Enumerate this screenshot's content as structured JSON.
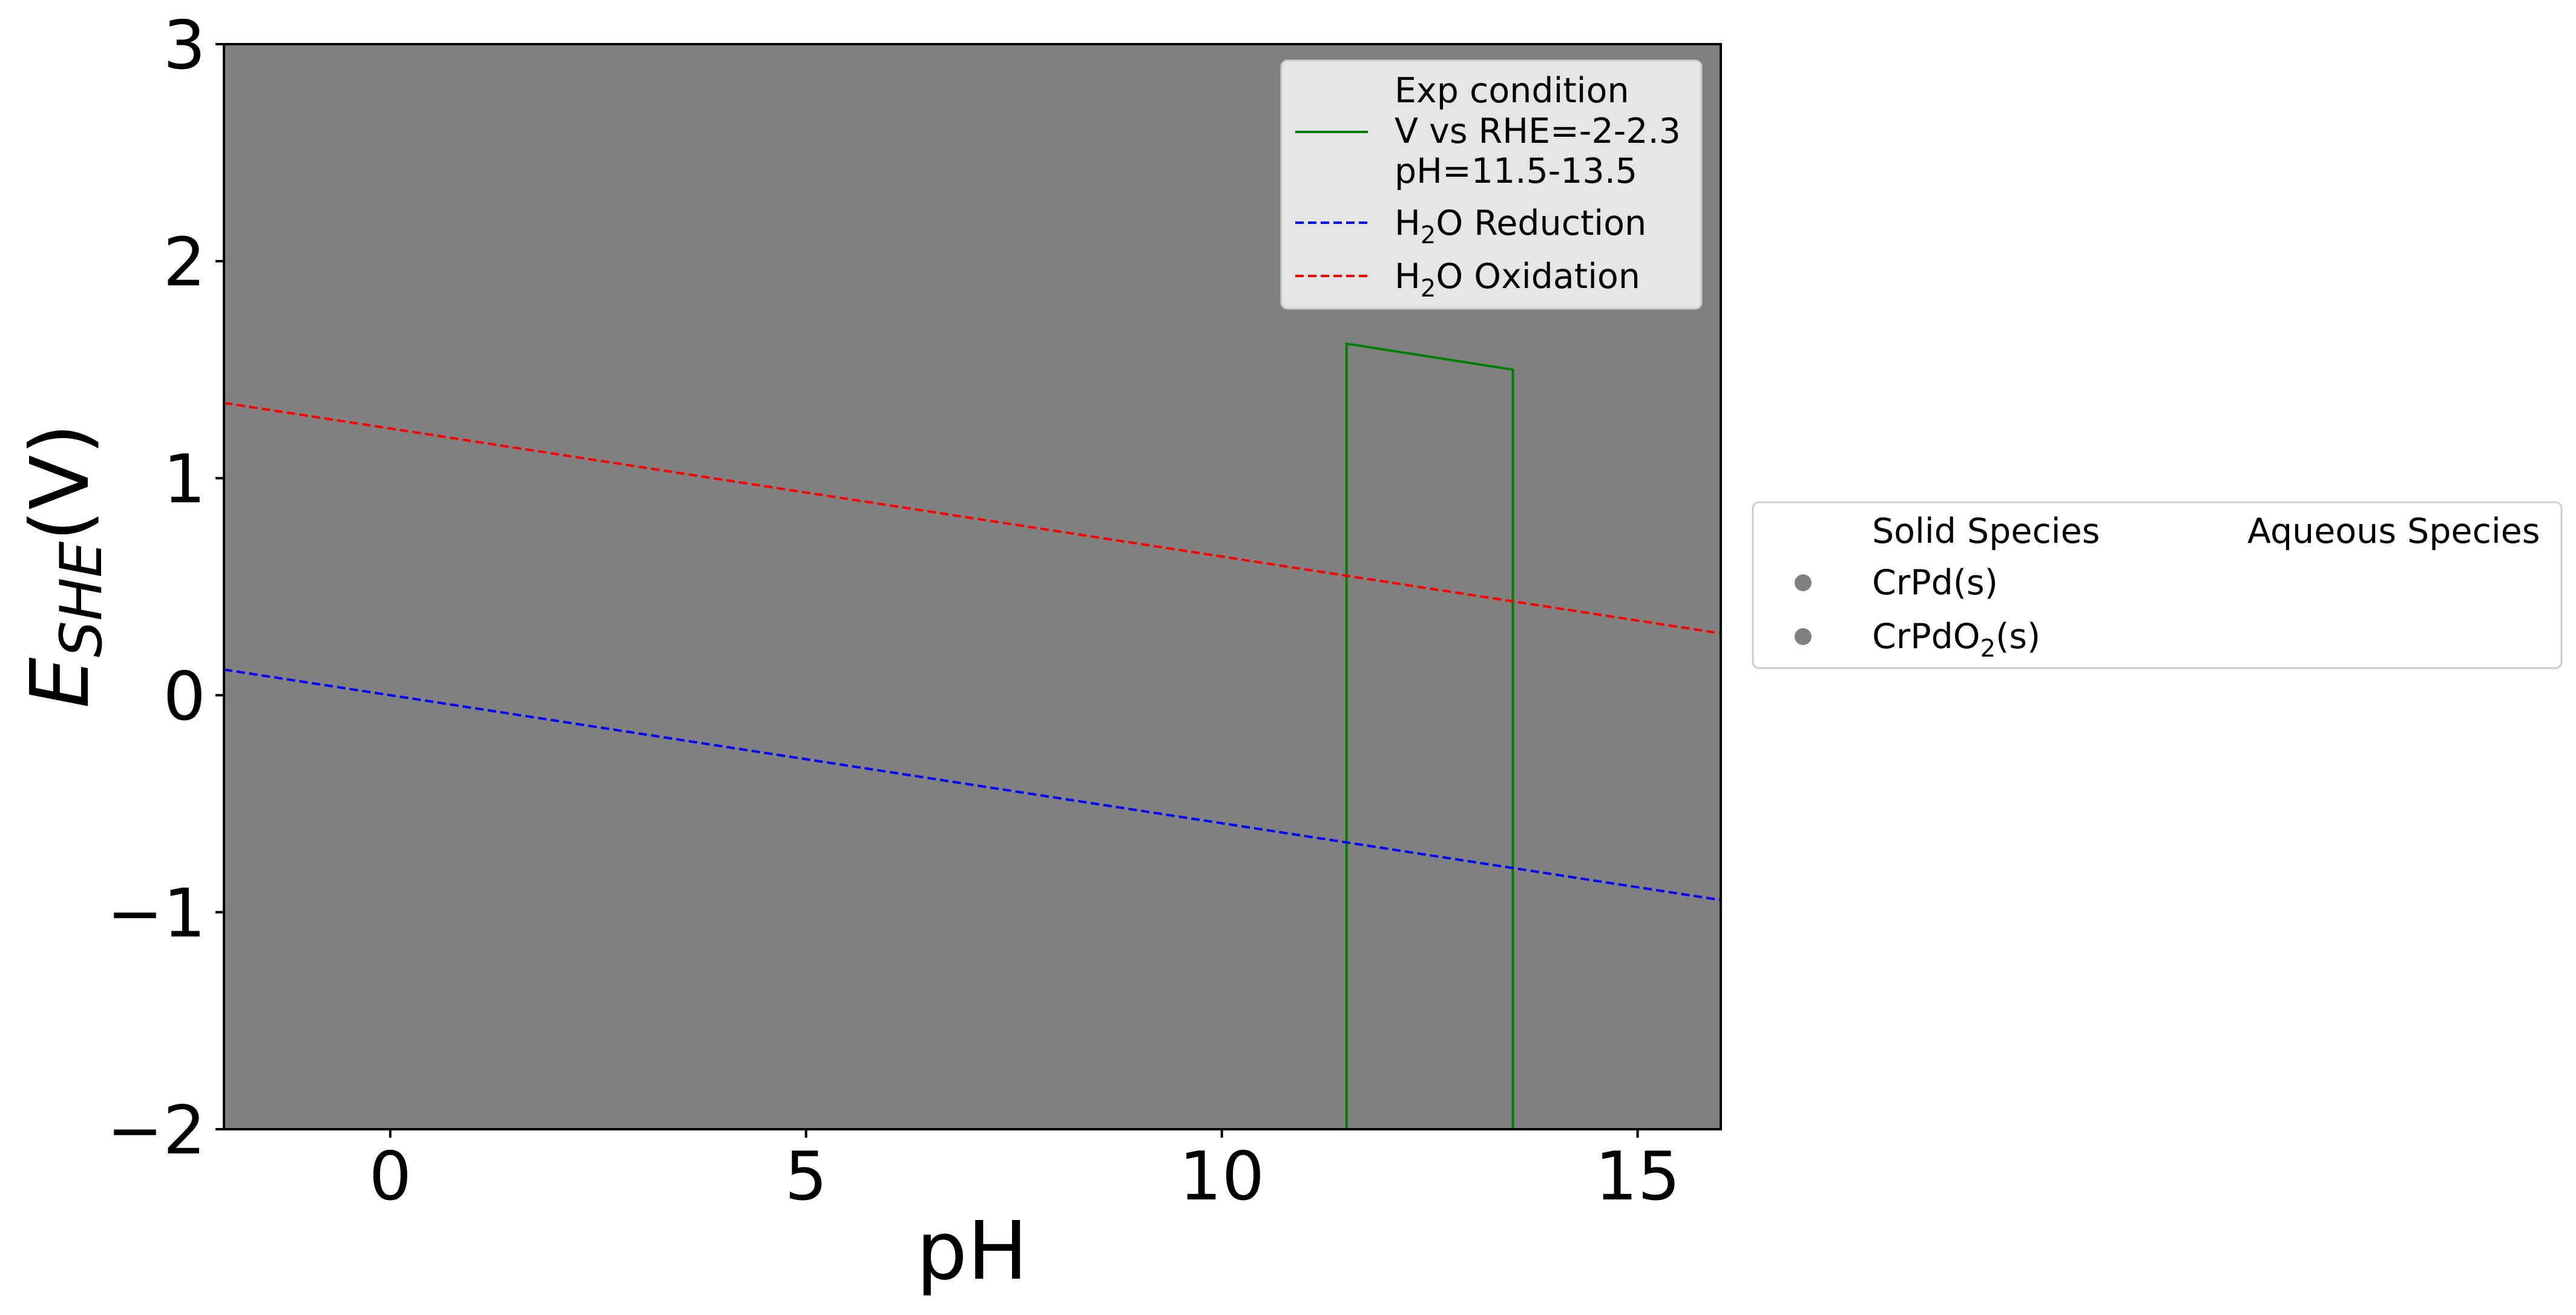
{
  "chart_data": {
    "type": "line",
    "xlabel": "pH",
    "ylabel": {
      "main": "E",
      "sub": "SHE",
      "unit": "(V)"
    },
    "xlim": [
      -2,
      16
    ],
    "ylim": [
      -2,
      3
    ],
    "xticks": [
      0,
      5,
      10,
      15
    ],
    "yticks": [
      3,
      2,
      1,
      0,
      -1,
      -2
    ],
    "xtick_labels": [
      "0",
      "5",
      "10",
      "15"
    ],
    "ytick_labels": [
      "3",
      "2",
      "1",
      "0",
      "−1",
      "−2"
    ],
    "grid": false,
    "plot_background": "#808080",
    "series": [
      {
        "key": "exp",
        "name": "Exp condition\nV vs RHE=-2-2.3\npH=11.5-13.5",
        "legend_lines": [
          "Exp condition",
          "V vs RHE=-2-2.3",
          "pH=11.5-13.5"
        ],
        "color": "#008000",
        "style": "solid",
        "x": [
          11.5,
          11.5,
          13.5,
          13.5
        ],
        "y": [
          -2.0,
          1.62,
          1.5,
          -2.0
        ]
      },
      {
        "key": "h2o_red",
        "name": "H2O Reduction",
        "legend_parts": [
          "H",
          "2",
          "O Reduction"
        ],
        "color": "#0000ff",
        "style": "dashed",
        "x": [
          -2,
          16
        ],
        "y": [
          0.118,
          -0.944
        ]
      },
      {
        "key": "h2o_ox",
        "name": "H2O Oxidation",
        "legend_parts": [
          "H",
          "2",
          "O Oxidation"
        ],
        "color": "#ff0000",
        "style": "dashed",
        "x": [
          -2,
          16
        ],
        "y": [
          1.347,
          0.285
        ]
      }
    ],
    "legend_position": "top-right",
    "species_legend": {
      "position": "right-outside",
      "solid_header": "Solid Species",
      "aqueous_header": "Aqueous Species",
      "marker_color": "#808080",
      "solid": [
        {
          "label": "CrPd(s)",
          "parts": [
            "CrPd(s)"
          ]
        },
        {
          "label": "CrPdO2(s)",
          "parts": [
            "CrPdO",
            "2",
            "(s)"
          ]
        }
      ],
      "aqueous": []
    }
  }
}
